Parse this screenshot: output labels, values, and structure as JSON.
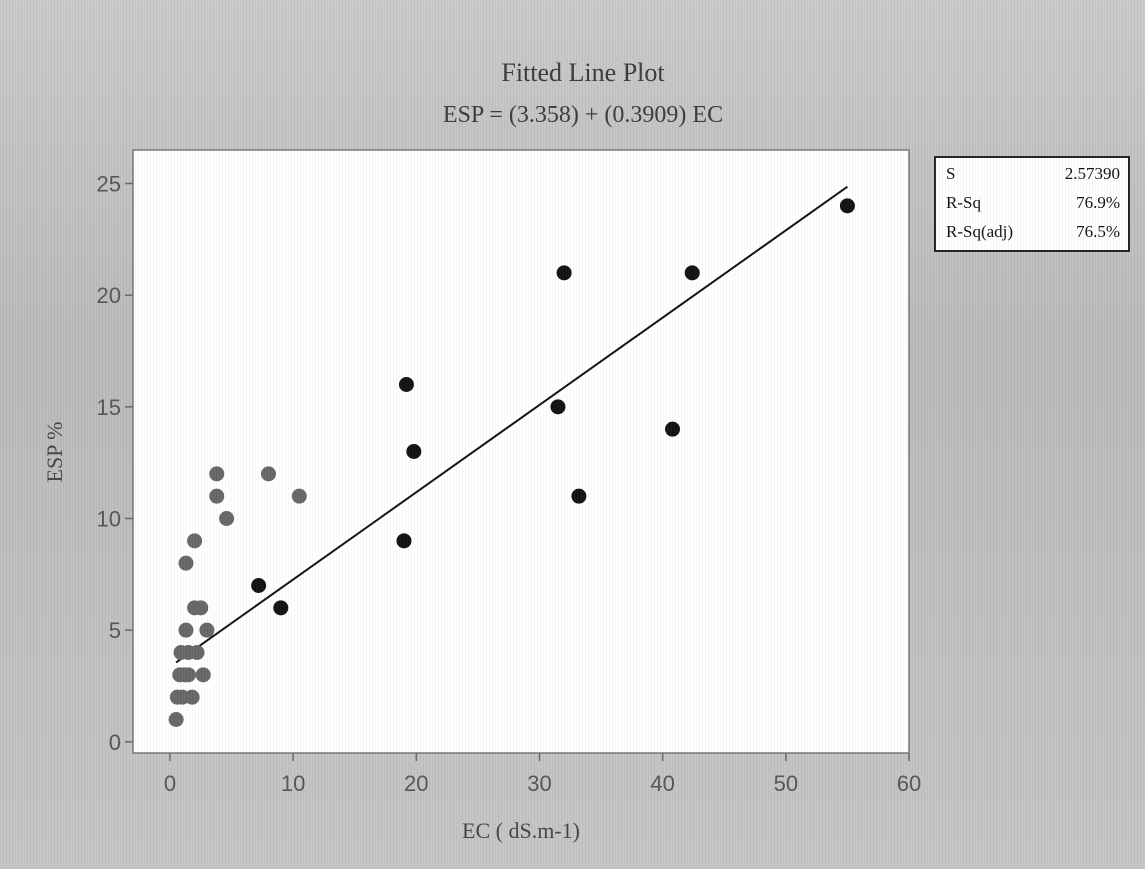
{
  "chart_data": {
    "type": "scatter",
    "title": "Fitted Line Plot",
    "subtitle": "ESP = (3.358) + (0.3909) EC",
    "xlabel": "EC ( dS.m-1)",
    "ylabel": "ESP %",
    "xlim": [
      -3,
      60
    ],
    "ylim": [
      -0.5,
      26.5
    ],
    "x_ticks": [
      0,
      10,
      20,
      30,
      40,
      50,
      60
    ],
    "y_ticks": [
      0,
      5,
      10,
      15,
      20,
      25
    ],
    "grid": false,
    "fit": {
      "intercept": 3.358,
      "slope": 0.3909,
      "x_range": [
        0.5,
        55
      ]
    },
    "points": [
      {
        "x": 0.5,
        "y": 1
      },
      {
        "x": 0.6,
        "y": 2
      },
      {
        "x": 0.8,
        "y": 3
      },
      {
        "x": 0.9,
        "y": 4
      },
      {
        "x": 1.0,
        "y": 2
      },
      {
        "x": 1.2,
        "y": 3
      },
      {
        "x": 1.3,
        "y": 5
      },
      {
        "x": 1.3,
        "y": 8
      },
      {
        "x": 1.5,
        "y": 4
      },
      {
        "x": 1.5,
        "y": 3
      },
      {
        "x": 1.8,
        "y": 2
      },
      {
        "x": 2.0,
        "y": 9
      },
      {
        "x": 2.0,
        "y": 6
      },
      {
        "x": 2.2,
        "y": 4
      },
      {
        "x": 2.5,
        "y": 6
      },
      {
        "x": 2.7,
        "y": 3
      },
      {
        "x": 3.0,
        "y": 5
      },
      {
        "x": 3.8,
        "y": 12
      },
      {
        "x": 3.8,
        "y": 11
      },
      {
        "x": 4.6,
        "y": 10
      },
      {
        "x": 7.2,
        "y": 7
      },
      {
        "x": 8.0,
        "y": 12
      },
      {
        "x": 9.0,
        "y": 6
      },
      {
        "x": 10.5,
        "y": 11
      },
      {
        "x": 19.0,
        "y": 9
      },
      {
        "x": 19.2,
        "y": 16
      },
      {
        "x": 19.8,
        "y": 13
      },
      {
        "x": 31.5,
        "y": 15
      },
      {
        "x": 32.0,
        "y": 21
      },
      {
        "x": 33.2,
        "y": 11
      },
      {
        "x": 40.8,
        "y": 14
      },
      {
        "x": 42.4,
        "y": 21
      },
      {
        "x": 55.0,
        "y": 24
      }
    ],
    "point_color": "#111111",
    "faded_point_color": "#666666",
    "line_color": "#111111"
  },
  "stats": [
    {
      "name": "S",
      "value": "2.57390"
    },
    {
      "name": "R-Sq",
      "value": "76.9%"
    },
    {
      "name": "R-Sq(adj)",
      "value": "76.5%"
    }
  ]
}
